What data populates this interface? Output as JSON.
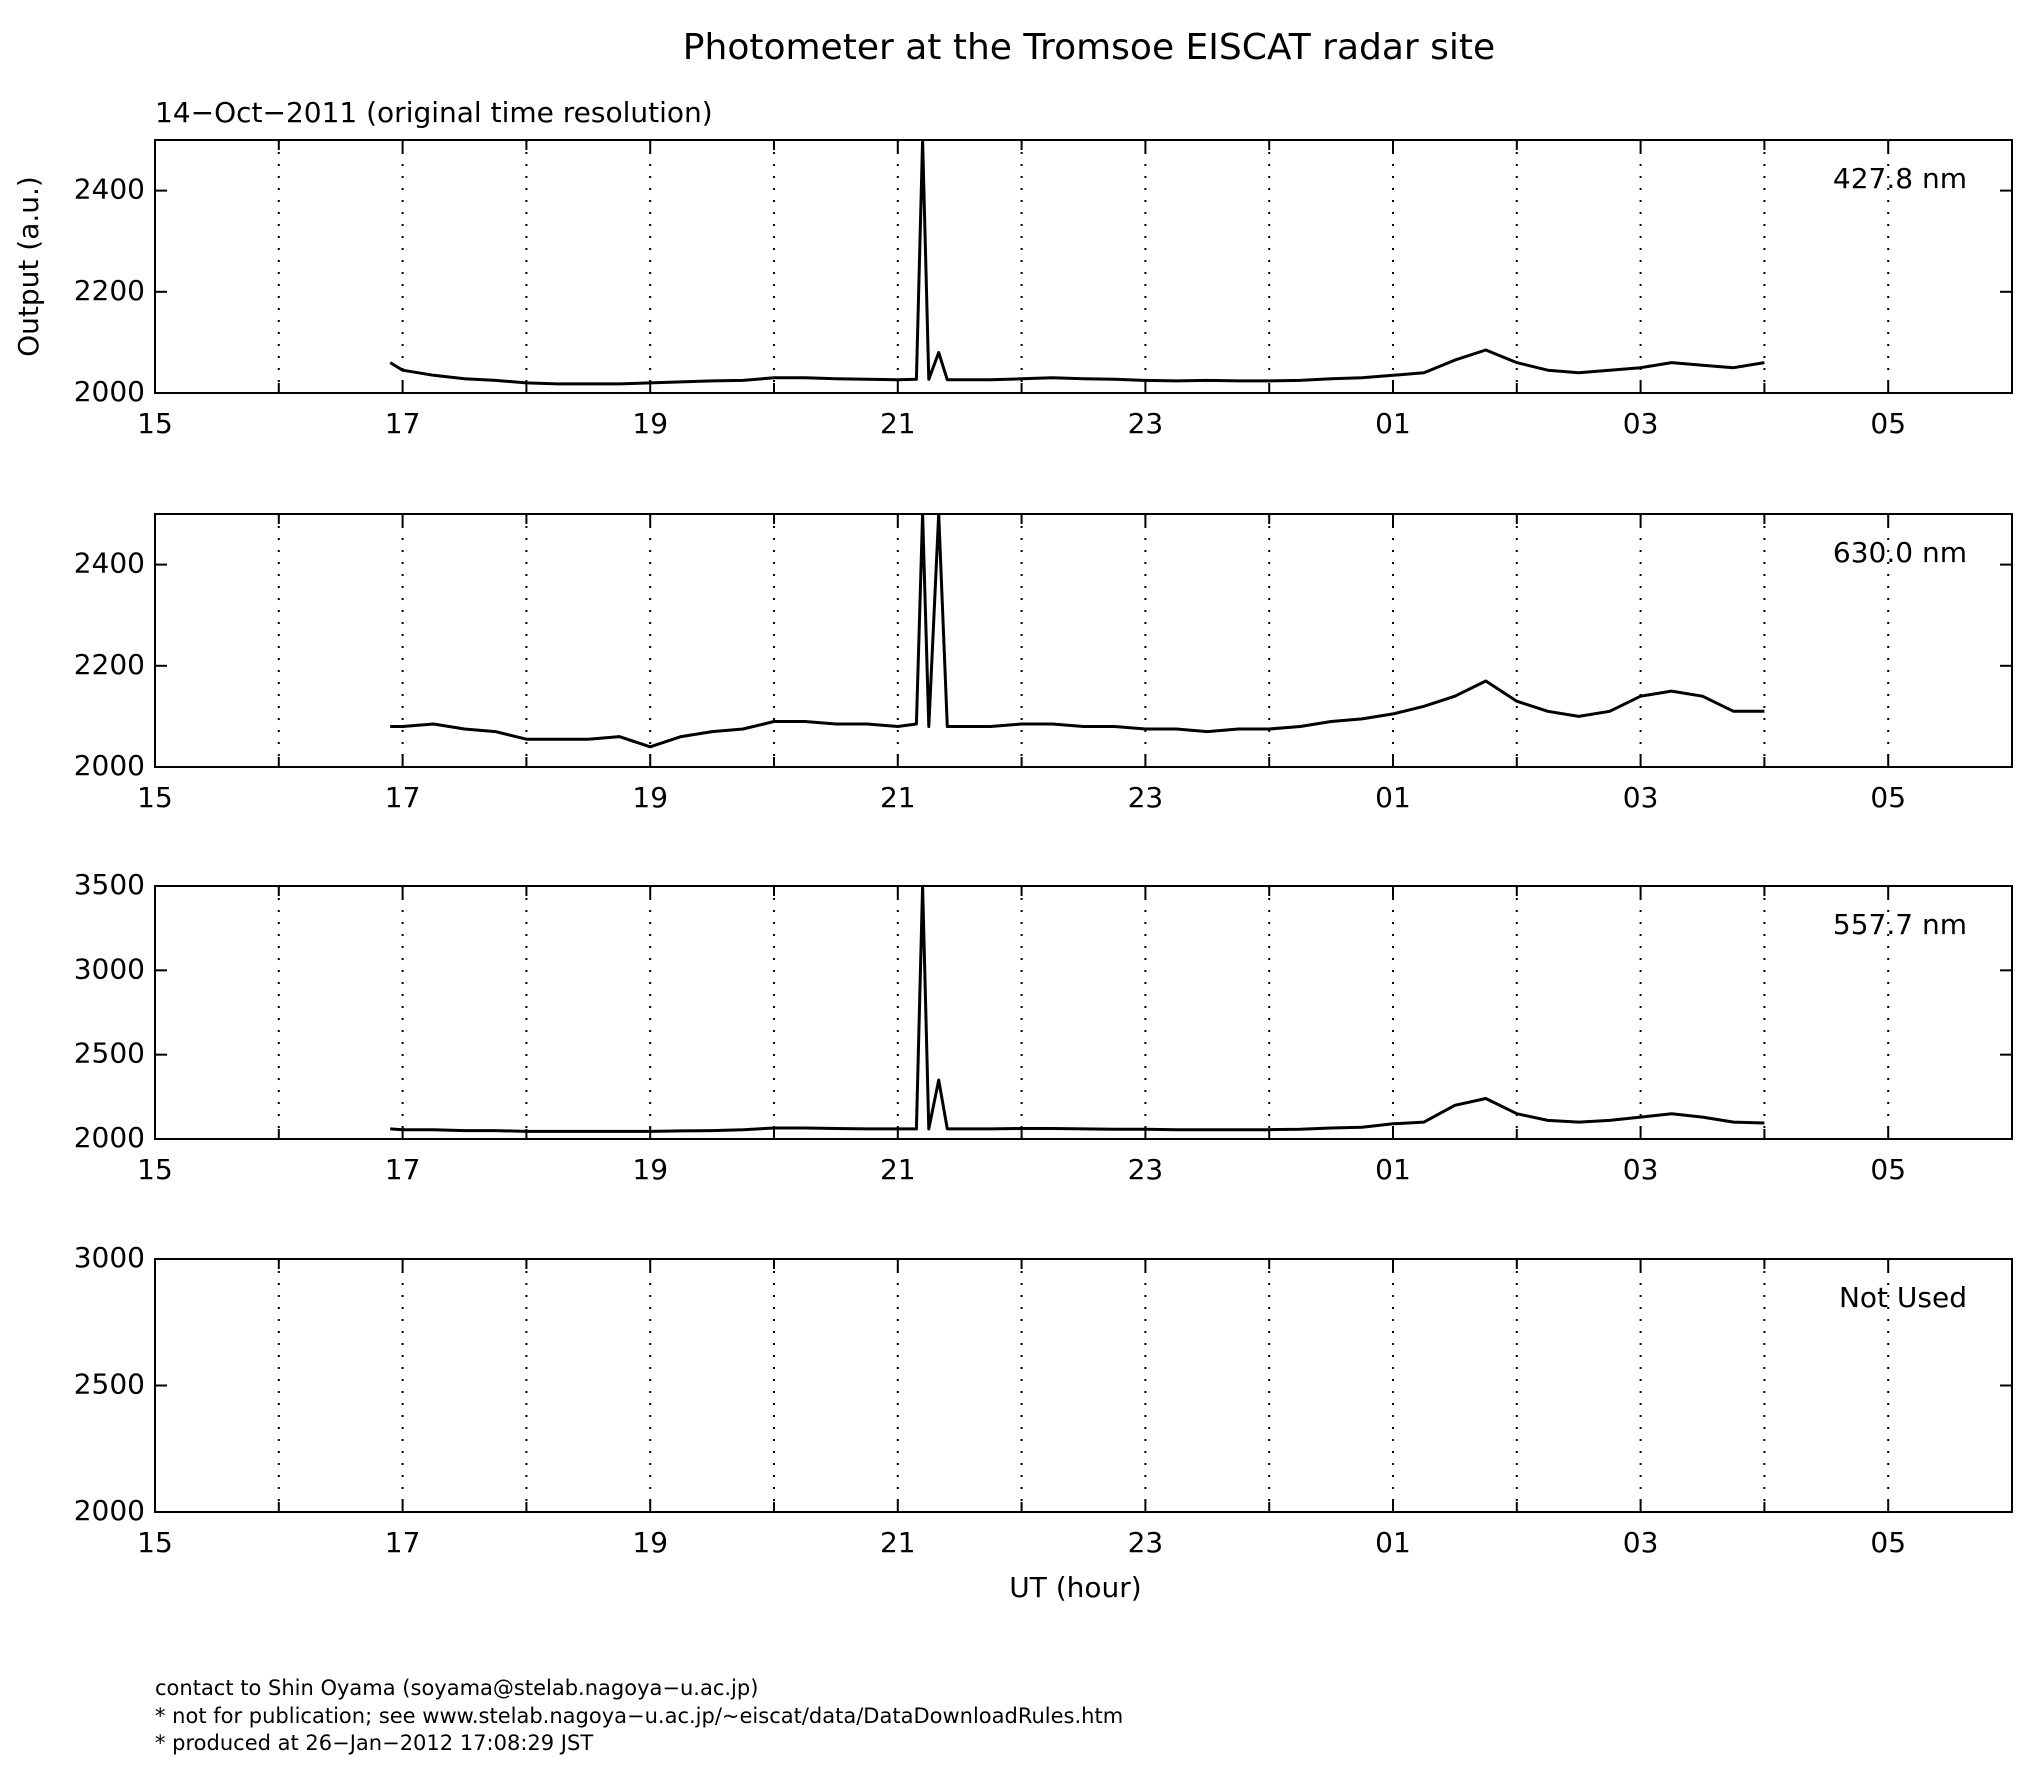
{
  "title": "Photometer at the Tromsoe EISCAT radar site",
  "subtitle": "14−Oct−2011 (original time resolution)",
  "footer": [
    "contact to Shin Oyama (soyama@stelab.nagoya−u.ac.jp)",
    "* not for publication; see www.stelab.nagoya−u.ac.jp/~eiscat/data/DataDownloadRules.htm",
    "* produced at 26−Jan−2012 17:08:29 JST"
  ],
  "chart_data": [
    {
      "type": "line",
      "label": "427.8 nm",
      "ylabel": "Output (a.u.)",
      "color": "#000000",
      "x": [
        16.9,
        17,
        17.25,
        17.5,
        17.75,
        18,
        18.25,
        18.5,
        18.75,
        19,
        19.25,
        19.5,
        19.75,
        20,
        20.25,
        20.5,
        20.75,
        21,
        21.15,
        21.2,
        21.25,
        21.33,
        21.4,
        21.75,
        22,
        22.25,
        22.5,
        22.75,
        23,
        23.25,
        23.5,
        23.75,
        24,
        24.25,
        24.5,
        24.75,
        25,
        25.25,
        25.5,
        25.75,
        26,
        26.25,
        26.5,
        26.75,
        27,
        27.25,
        27.5,
        27.75,
        28
      ],
      "values": [
        2060,
        2045,
        2035,
        2028,
        2025,
        2020,
        2018,
        2018,
        2018,
        2020,
        2022,
        2024,
        2025,
        2030,
        2030,
        2028,
        2027,
        2026,
        2027,
        2500,
        2027,
        2080,
        2026,
        2026,
        2028,
        2030,
        2028,
        2027,
        2025,
        2024,
        2025,
        2024,
        2024,
        2025,
        2028,
        2030,
        2035,
        2040,
        2065,
        2085,
        2060,
        2045,
        2040,
        2045,
        2050,
        2060,
        2055,
        2050,
        2060
      ],
      "xlim": [
        15,
        30
      ],
      "xticks": [
        15,
        17,
        19,
        21,
        23,
        {
          "value": 25,
          "label": "01"
        },
        {
          "value": 27,
          "label": "03"
        },
        {
          "value": 29,
          "label": "05"
        }
      ],
      "xminor_ticks": [
        16,
        18,
        20,
        22,
        24,
        26,
        28
      ],
      "ylim": [
        2000,
        2500
      ],
      "yticks": [
        2000,
        2200,
        2400
      ],
      "grid": true
    },
    {
      "type": "line",
      "label": "630.0 nm",
      "color": "#000000",
      "x": [
        16.9,
        17,
        17.25,
        17.5,
        17.75,
        18,
        18.25,
        18.5,
        18.75,
        19,
        19.25,
        19.5,
        19.75,
        20,
        20.25,
        20.5,
        20.75,
        21,
        21.15,
        21.2,
        21.25,
        21.33,
        21.4,
        21.75,
        22,
        22.25,
        22.5,
        22.75,
        23,
        23.25,
        23.5,
        23.75,
        24,
        24.25,
        24.5,
        24.75,
        25,
        25.25,
        25.5,
        25.75,
        26,
        26.25,
        26.5,
        26.75,
        27,
        27.25,
        27.5,
        27.75,
        28
      ],
      "values": [
        2080,
        2080,
        2085,
        2075,
        2070,
        2055,
        2055,
        2055,
        2060,
        2040,
        2060,
        2070,
        2075,
        2090,
        2090,
        2085,
        2085,
        2080,
        2085,
        2500,
        2080,
        2500,
        2080,
        2080,
        2085,
        2085,
        2080,
        2080,
        2075,
        2075,
        2070,
        2075,
        2075,
        2080,
        2090,
        2095,
        2105,
        2120,
        2140,
        2170,
        2130,
        2110,
        2100,
        2110,
        2140,
        2150,
        2140,
        2110,
        2110
      ],
      "xlim": [
        15,
        30
      ],
      "xticks": [
        15,
        17,
        19,
        21,
        23,
        {
          "value": 25,
          "label": "01"
        },
        {
          "value": 27,
          "label": "03"
        },
        {
          "value": 29,
          "label": "05"
        }
      ],
      "xminor_ticks": [
        16,
        18,
        20,
        22,
        24,
        26,
        28
      ],
      "ylim": [
        2000,
        2500
      ],
      "yticks": [
        2000,
        2200,
        2400
      ],
      "grid": true
    },
    {
      "type": "line",
      "label": "557.7 nm",
      "color": "#000000",
      "x": [
        16.9,
        17,
        17.25,
        17.5,
        17.75,
        18,
        18.25,
        18.5,
        18.75,
        19,
        19.25,
        19.5,
        19.75,
        20,
        20.25,
        20.5,
        20.75,
        21,
        21.15,
        21.2,
        21.25,
        21.33,
        21.4,
        21.75,
        22,
        22.25,
        22.5,
        22.75,
        23,
        23.25,
        23.5,
        23.75,
        24,
        24.25,
        24.5,
        24.75,
        25,
        25.25,
        25.5,
        25.75,
        26,
        26.25,
        26.5,
        26.75,
        27,
        27.25,
        27.5,
        27.75,
        28
      ],
      "values": [
        2060,
        2055,
        2055,
        2050,
        2050,
        2045,
        2045,
        2045,
        2045,
        2045,
        2048,
        2050,
        2055,
        2065,
        2065,
        2062,
        2060,
        2060,
        2060,
        3500,
        2060,
        2350,
        2060,
        2060,
        2062,
        2062,
        2060,
        2058,
        2058,
        2055,
        2055,
        2055,
        2055,
        2058,
        2065,
        2070,
        2090,
        2100,
        2200,
        2240,
        2150,
        2110,
        2100,
        2110,
        2130,
        2150,
        2130,
        2100,
        2095
      ],
      "xlim": [
        15,
        30
      ],
      "xticks": [
        15,
        17,
        19,
        21,
        23,
        {
          "value": 25,
          "label": "01"
        },
        {
          "value": 27,
          "label": "03"
        },
        {
          "value": 29,
          "label": "05"
        }
      ],
      "xminor_ticks": [
        16,
        18,
        20,
        22,
        24,
        26,
        28
      ],
      "ylim": [
        2000,
        3500
      ],
      "yticks": [
        2000,
        2500,
        3000,
        3500
      ],
      "grid": true
    },
    {
      "type": "line",
      "label": "Not Used",
      "xlabel": "UT (hour)",
      "xlim": [
        15,
        30
      ],
      "xticks": [
        15,
        17,
        19,
        21,
        23,
        {
          "value": 25,
          "label": "01"
        },
        {
          "value": 27,
          "label": "03"
        },
        {
          "value": 29,
          "label": "05"
        }
      ],
      "xminor_ticks": [
        16,
        18,
        20,
        22,
        24,
        26,
        28
      ],
      "ylim": [
        2000,
        3000
      ],
      "yticks": [
        2000,
        2500,
        3000
      ],
      "grid": true
    }
  ]
}
